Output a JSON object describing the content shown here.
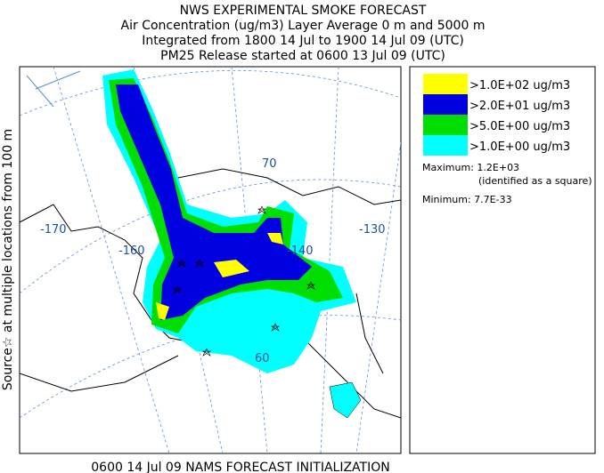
{
  "header": {
    "title": "NWS EXPERIMENTAL SMOKE FORECAST",
    "lines": [
      "Air Concentration (ug/m3) Layer Average    0 m and  5000 m",
      "Integrated from 1800 14 Jul to 1900 14 Jul 09 (UTC)",
      "PM25 Release started at 0600 13 Jul 09 (UTC)"
    ]
  },
  "side_label": "Source☆ at multiple locations from  100 m",
  "footer": "0600 14 Jul 09 NAMS FORECAST INITIALIZATION",
  "legend": {
    "items": [
      {
        "label": ">1.0E+02 ug/m3",
        "color": "#ffff00"
      },
      {
        "label": ">2.0E+01 ug/m3",
        "color": "#0000e0"
      },
      {
        "label": ">5.0E+00 ug/m3",
        "color": "#00dd00"
      },
      {
        "label": ">1.0E+00 ug/m3",
        "color": "#00ffff"
      }
    ],
    "maximum": "Maximum: 1.2E+03",
    "maximum_note": "(identified as a square)",
    "minimum": "Minimum: 7.7E-33"
  },
  "map_labels": [
    "-170",
    "-160",
    "-140",
    "-130",
    "70",
    "60"
  ]
}
